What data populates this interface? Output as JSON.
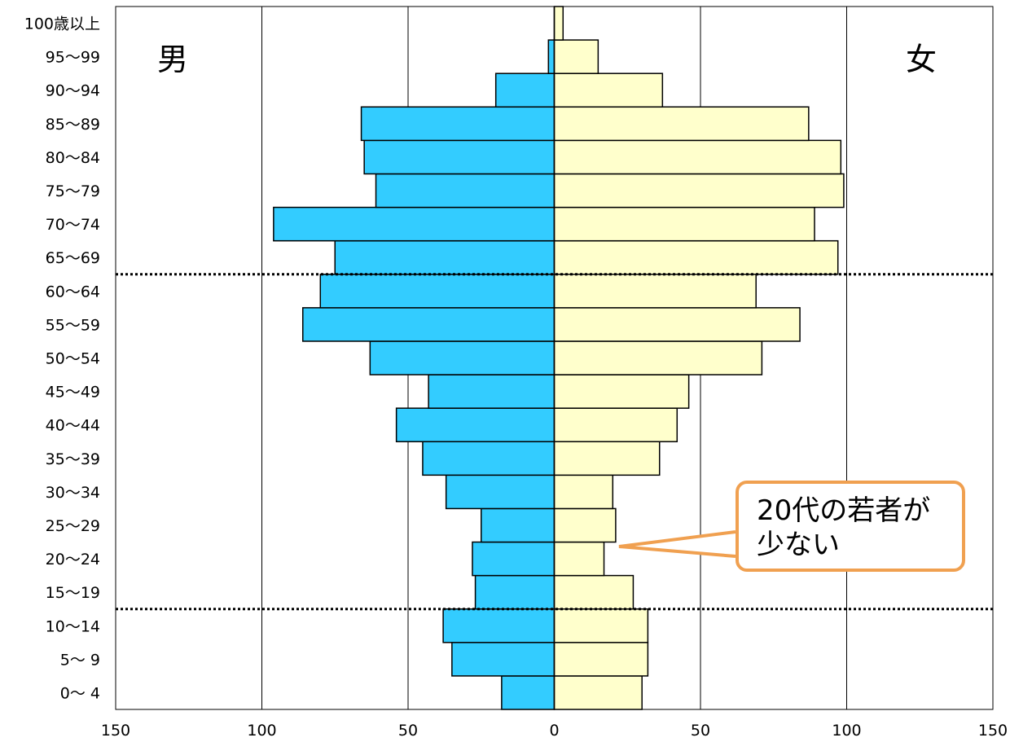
{
  "chart_data": {
    "type": "bar",
    "orientation": "horizontal",
    "categories": [
      "0～ 4",
      "5～ 9",
      "10～14",
      "15～19",
      "20～24",
      "25～29",
      "30～34",
      "35～39",
      "40～44",
      "45～49",
      "50～54",
      "55～59",
      "60～64",
      "65～69",
      "70～74",
      "75～79",
      "80～84",
      "85～89",
      "90～94",
      "95～99",
      "100歳以上"
    ],
    "series": [
      {
        "name": "男",
        "values": [
          18,
          35,
          38,
          27,
          28,
          25,
          37,
          45,
          54,
          43,
          63,
          86,
          80,
          75,
          96,
          61,
          65,
          66,
          20,
          2,
          0
        ],
        "color": "#33ccff"
      },
      {
        "name": "女",
        "values": [
          30,
          32,
          32,
          27,
          17,
          21,
          20,
          36,
          42,
          46,
          71,
          84,
          69,
          97,
          89,
          99,
          98,
          87,
          37,
          15,
          3
        ],
        "color": "#ffffcc"
      }
    ],
    "xlim": [
      -150,
      150
    ],
    "x_ticks": [
      "150",
      "100",
      "50",
      "0",
      "50",
      "100",
      "150"
    ],
    "x_tick_values": [
      -150,
      -100,
      -50,
      0,
      50,
      100,
      150
    ],
    "reference_lines_between": [
      [
        "10～14",
        "15～19"
      ],
      [
        "60～64",
        "65～69"
      ]
    ],
    "annotation": {
      "lines": [
        "20代の若者が",
        "少ない"
      ],
      "points_to": "20～24",
      "border_color": "#f0a050"
    },
    "grid": "vertical",
    "title": "",
    "xlabel": "",
    "ylabel": ""
  }
}
